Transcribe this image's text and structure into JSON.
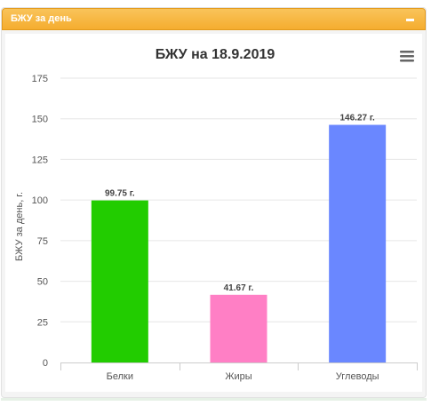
{
  "panel": {
    "title": "БЖУ за день"
  },
  "colors": {
    "header": "#f5ad2f"
  },
  "chart_data": {
    "type": "bar",
    "title": "БЖУ на 18.9.2019",
    "ylabel": "БЖУ за день, г.",
    "xlabel": "",
    "categories": [
      "Белки",
      "Жиры",
      "Углеводы"
    ],
    "values": [
      99.75,
      41.67,
      146.27
    ],
    "data_labels": [
      "99.75 г.",
      "41.67 г.",
      "146.27 г."
    ],
    "colors": [
      "#22cc00",
      "#ff7fc5",
      "#6a87ff"
    ],
    "ylim": [
      0,
      175
    ],
    "yticks": [
      0,
      25,
      50,
      75,
      100,
      125,
      150,
      175
    ],
    "grid": true,
    "legend": "none"
  }
}
